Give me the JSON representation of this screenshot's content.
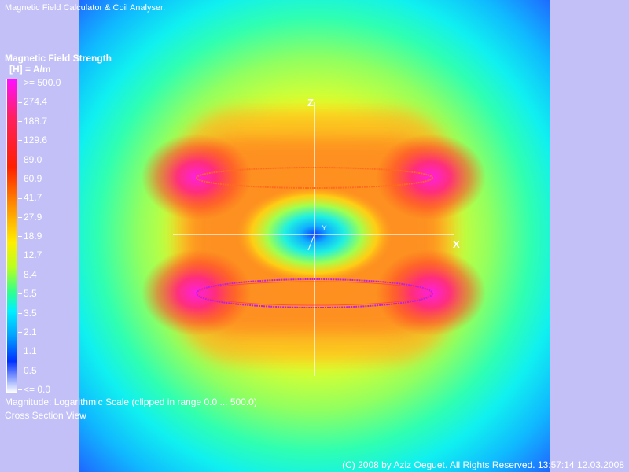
{
  "app": {
    "title": "Magnetic Field Calculator & Coil Analyser."
  },
  "legend": {
    "title": "Magnetic Field Strength",
    "unit": "[H] = A/m",
    "ticks": [
      ">= 500.0",
      "274.4",
      "188.7",
      "129.6",
      "89.0",
      "60.9",
      "41.7",
      "27.9",
      "18.9",
      "12.7",
      "8.4",
      "5.5",
      "3.5",
      "2.1",
      "1.1",
      "0.5",
      "<= 0.0"
    ]
  },
  "footer": {
    "scale_note": "Magnitude: Logarithmic Scale (clipped in range 0.0 ... 500.0)",
    "view_note": "Cross Section View",
    "copyright": "(C) 2008 by Aziz Oeguet. All Rights Reserved.  13:57:14  12.03.2008"
  },
  "axes": {
    "x_label": "X",
    "z_label": "Z",
    "y_label": "Y"
  },
  "colors": {
    "background": "#c3c0f7",
    "text": "#ffffff",
    "coil_upper": "#ff6a20",
    "coil_lower": "#c020e0"
  }
}
